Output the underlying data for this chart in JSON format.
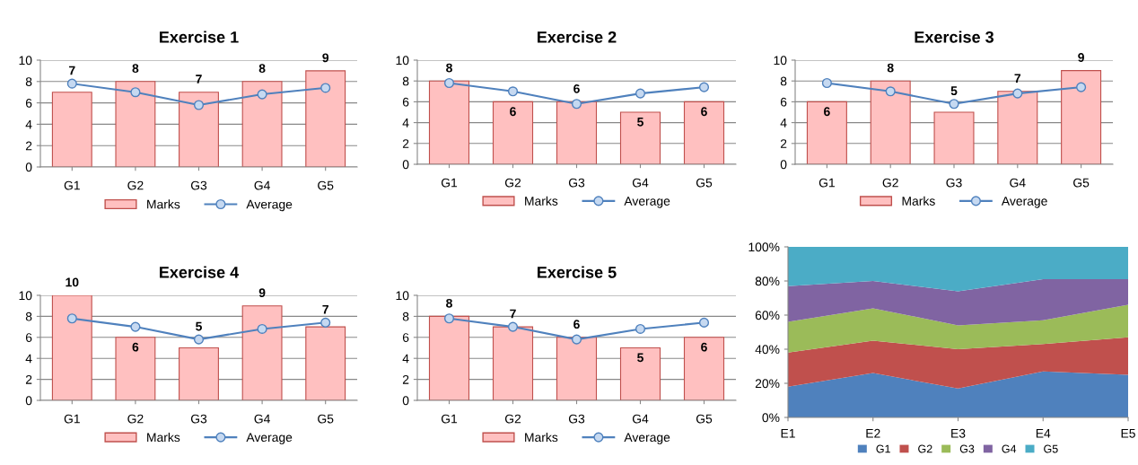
{
  "chart_data": [
    {
      "type": "bar",
      "title": "Exercise 1",
      "categories": [
        "G1",
        "G2",
        "G3",
        "G4",
        "G5"
      ],
      "ylim": [
        0,
        10
      ],
      "yticks": [
        0,
        2,
        4,
        6,
        8,
        10
      ],
      "grid": "y",
      "legend": "bottom",
      "series": [
        {
          "name": "Marks",
          "type": "bar",
          "color": "#ffc0c0",
          "values": [
            7,
            8,
            7,
            8,
            9
          ],
          "value_labels": [
            "7",
            "8",
            "7",
            "8",
            "9"
          ]
        },
        {
          "name": "Average",
          "type": "line",
          "color": "#4f81bd",
          "marker": "circle",
          "values": [
            7.8,
            7.0,
            5.8,
            6.8,
            7.4
          ]
        }
      ]
    },
    {
      "type": "bar",
      "title": "Exercise 2",
      "categories": [
        "G1",
        "G2",
        "G3",
        "G4",
        "G5"
      ],
      "ylim": [
        0,
        10
      ],
      "yticks": [
        0,
        2,
        4,
        6,
        8,
        10
      ],
      "grid": "y",
      "legend": "bottom",
      "series": [
        {
          "name": "Marks",
          "type": "bar",
          "color": "#ffc0c0",
          "values": [
            8,
            6,
            6,
            5,
            6
          ],
          "value_labels": [
            "8",
            "6",
            "6",
            "5",
            "6"
          ]
        },
        {
          "name": "Average",
          "type": "line",
          "color": "#4f81bd",
          "marker": "circle",
          "values": [
            7.8,
            7.0,
            5.8,
            6.8,
            7.4
          ]
        }
      ]
    },
    {
      "type": "bar",
      "title": "Exercise 3",
      "categories": [
        "G1",
        "G2",
        "G3",
        "G4",
        "G5"
      ],
      "ylim": [
        0,
        10
      ],
      "yticks": [
        0,
        2,
        4,
        6,
        8,
        10
      ],
      "grid": "y",
      "legend": "bottom",
      "series": [
        {
          "name": "Marks",
          "type": "bar",
          "color": "#ffc0c0",
          "values": [
            6,
            8,
            5,
            7,
            9
          ],
          "value_labels": [
            "6",
            "8",
            "5",
            "7",
            "9"
          ]
        },
        {
          "name": "Average",
          "type": "line",
          "color": "#4f81bd",
          "marker": "circle",
          "values": [
            7.8,
            7.0,
            5.8,
            6.8,
            7.4
          ]
        }
      ]
    },
    {
      "type": "bar",
      "title": "Exercise 4",
      "categories": [
        "G1",
        "G2",
        "G3",
        "G4",
        "G5"
      ],
      "ylim": [
        0,
        10
      ],
      "yticks": [
        0,
        2,
        4,
        6,
        8,
        10
      ],
      "grid": "y",
      "legend": "bottom",
      "series": [
        {
          "name": "Marks",
          "type": "bar",
          "color": "#ffc0c0",
          "values": [
            10,
            6,
            5,
            9,
            7
          ],
          "value_labels": [
            "10",
            "6",
            "5",
            "9",
            "7"
          ]
        },
        {
          "name": "Average",
          "type": "line",
          "color": "#4f81bd",
          "marker": "circle",
          "values": [
            7.8,
            7.0,
            5.8,
            6.8,
            7.4
          ]
        }
      ]
    },
    {
      "type": "bar",
      "title": "Exercise 5",
      "categories": [
        "G1",
        "G2",
        "G3",
        "G4",
        "G5"
      ],
      "ylim": [
        0,
        10
      ],
      "yticks": [
        0,
        2,
        4,
        6,
        8,
        10
      ],
      "grid": "y",
      "legend": "bottom",
      "series": [
        {
          "name": "Marks",
          "type": "bar",
          "color": "#ffc0c0",
          "values": [
            8,
            7,
            6,
            5,
            6
          ],
          "value_labels": [
            "8",
            "7",
            "6",
            "5",
            "6"
          ]
        },
        {
          "name": "Average",
          "type": "line",
          "color": "#4f81bd",
          "marker": "circle",
          "values": [
            7.8,
            7.0,
            5.8,
            6.8,
            7.4
          ]
        }
      ]
    },
    {
      "type": "area",
      "stacked": true,
      "categories": [
        "E1",
        "E2",
        "E3",
        "E4",
        "E5"
      ],
      "ylim": [
        0,
        100
      ],
      "yticks": [
        {
          "value": 0,
          "label": "0%"
        },
        {
          "value": 20,
          "label": "20%"
        },
        {
          "value": 40,
          "label": "40%"
        },
        {
          "value": 60,
          "label": "60%"
        },
        {
          "value": 80,
          "label": "80%"
        },
        {
          "value": 100,
          "label": "100%"
        }
      ],
      "legend": "bottom",
      "series": [
        {
          "name": "G1",
          "color": "#4f81bd",
          "values": [
            18,
            26,
            17,
            27,
            25
          ]
        },
        {
          "name": "G2",
          "color": "#c0504d",
          "values": [
            20,
            19,
            23,
            16,
            22
          ]
        },
        {
          "name": "G3",
          "color": "#9bbb59",
          "values": [
            18,
            19,
            14,
            14,
            19
          ]
        },
        {
          "name": "G4",
          "color": "#8064a2",
          "values": [
            21,
            16,
            20,
            24,
            15
          ]
        },
        {
          "name": "G5",
          "color": "#4bacc6",
          "values": [
            23,
            20,
            26,
            19,
            19
          ]
        }
      ]
    }
  ]
}
